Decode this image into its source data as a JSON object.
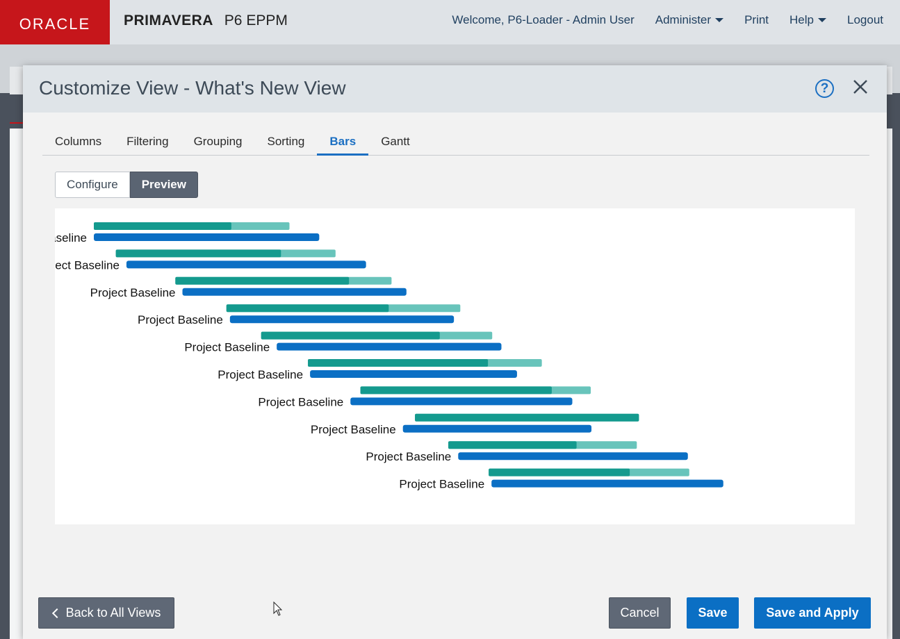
{
  "header": {
    "logo_text": "ORACLE",
    "brand_name": "PRIMAVERA",
    "brand_product": "P6 EPPM",
    "nav": [
      {
        "label": "Welcome, P6-Loader - Admin User",
        "dropdown": false
      },
      {
        "label": "Administer",
        "dropdown": true
      },
      {
        "label": "Print",
        "dropdown": false
      },
      {
        "label": "Help",
        "dropdown": true
      },
      {
        "label": "Logout",
        "dropdown": false
      }
    ]
  },
  "modal": {
    "title": "Customize View - What's New View",
    "help_icon": "help-circle-icon",
    "close_icon": "close-icon",
    "tabs": [
      {
        "label": "Columns",
        "active": false
      },
      {
        "label": "Filtering",
        "active": false
      },
      {
        "label": "Grouping",
        "active": false
      },
      {
        "label": "Sorting",
        "active": false
      },
      {
        "label": "Bars",
        "active": true
      },
      {
        "label": "Gantt",
        "active": false
      }
    ],
    "mode_toggle": {
      "configure_label": "Configure",
      "preview_label": "Preview",
      "selected": "Preview"
    },
    "footer": {
      "back_label": "Back to All Views",
      "cancel_label": "Cancel",
      "save_label": "Save",
      "save_apply_label": "Save and Apply"
    }
  },
  "colors": {
    "progress_dark": "#149a8e",
    "progress_light": "#68c4bb",
    "baseline_bar": "#0b6fc4",
    "accent": "#1b6fc2",
    "oracle_red": "#c6161b"
  },
  "chart_data": {
    "type": "gantt-preview",
    "bar_label": "Project Baseline",
    "rows": [
      {
        "label": "Project Baseline",
        "progress_start": 0.0,
        "progress_split": 0.194,
        "progress_end": 0.276,
        "baseline_start": 0.0,
        "baseline_end": 0.318
      },
      {
        "label": "Project Baseline",
        "progress_start": 0.031,
        "progress_split": 0.264,
        "progress_end": 0.341,
        "baseline_start": 0.046,
        "baseline_end": 0.384
      },
      {
        "label": "Project Baseline",
        "progress_start": 0.115,
        "progress_split": 0.36,
        "progress_end": 0.42,
        "baseline_start": 0.125,
        "baseline_end": 0.441
      },
      {
        "label": "Project Baseline",
        "progress_start": 0.187,
        "progress_split": 0.416,
        "progress_end": 0.517,
        "baseline_start": 0.192,
        "baseline_end": 0.508
      },
      {
        "label": "Project Baseline",
        "progress_start": 0.236,
        "progress_split": 0.488,
        "progress_end": 0.562,
        "baseline_start": 0.258,
        "baseline_end": 0.575
      },
      {
        "label": "Project Baseline",
        "progress_start": 0.302,
        "progress_split": 0.556,
        "progress_end": 0.632,
        "baseline_start": 0.305,
        "baseline_end": 0.597
      },
      {
        "label": "Project Baseline",
        "progress_start": 0.376,
        "progress_split": 0.646,
        "progress_end": 0.701,
        "baseline_start": 0.362,
        "baseline_end": 0.675
      },
      {
        "label": "Project Baseline",
        "progress_start": 0.453,
        "progress_split": 0.773,
        "progress_end": 0.769,
        "baseline_start": 0.436,
        "baseline_end": 0.702
      },
      {
        "label": "Project Baseline",
        "progress_start": 0.5,
        "progress_split": 0.681,
        "progress_end": 0.766,
        "baseline_start": 0.514,
        "baseline_end": 0.838
      },
      {
        "label": "Project Baseline",
        "progress_start": 0.557,
        "progress_split": 0.756,
        "progress_end": 0.84,
        "baseline_start": 0.561,
        "baseline_end": 0.888
      }
    ]
  }
}
